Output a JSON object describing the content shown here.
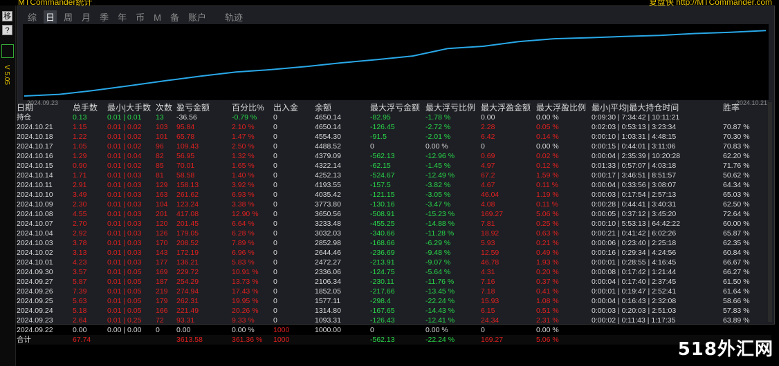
{
  "title": "MTCommander统计",
  "brand": "复盘侠 http://MTCommander.com",
  "sidebar": {
    "btn1": "移",
    "btn2": "?",
    "btn3": "✓",
    "vtext": "V 5.05"
  },
  "tabs": [
    "综",
    "日",
    "周",
    "月",
    "季",
    "年",
    "币",
    "M",
    "备",
    "账户"
  ],
  "active_tab": "日",
  "track_tab": "轨迹",
  "chart": {
    "start_date": "2024.09.23",
    "end_date": "2024.10.21",
    "line_color": "#29a8e8"
  },
  "chart_data": {
    "type": "line",
    "x": [
      "2024.09.23",
      "2024.09.24",
      "2024.09.25",
      "2024.09.26",
      "2024.09.27",
      "2024.09.30",
      "2024.10.01",
      "2024.10.02",
      "2024.10.03",
      "2024.10.04",
      "2024.10.07",
      "2024.10.08",
      "2024.10.09",
      "2024.10.10",
      "2024.10.11",
      "2024.10.14",
      "2024.10.15",
      "2024.10.16",
      "2024.10.17",
      "2024.10.18",
      "2024.10.21"
    ],
    "series": [
      {
        "values": [
          1093.31,
          1314.8,
          1577.11,
          1852.05,
          2106.34,
          2336.06,
          2472.27,
          2644.46,
          2852.98,
          3032.03,
          3233.48,
          3650.56,
          3773.8,
          4035.42,
          4193.55,
          4252.13,
          4322.14,
          4379.09,
          4488.52,
          4554.3,
          4650.14
        ]
      }
    ],
    "ylim": [
      1000,
      4700
    ]
  },
  "columns": [
    "日期",
    "总手数",
    "最小|大手数",
    "次数",
    "盈亏金额",
    "百分比%",
    "出入金",
    "余额",
    "最大浮亏金额",
    "最大浮亏比例",
    "最大浮盈金额",
    "最大浮盈比例",
    "最小|平均|最大持仓时间",
    "胜率"
  ],
  "holding": [
    "持仓",
    "0.13",
    "0.01 | 0.01",
    "13",
    "-36.56",
    "-0.79 %",
    "0",
    "4650.14",
    "-82.95",
    "-1.78 %",
    "0.00",
    "0.00 %",
    "0:09:30 | 7:34:42 | 10:11:21",
    ""
  ],
  "rows": [
    [
      "2024.10.21",
      "1.15",
      "0.01 | 0.02",
      "103",
      "95.84",
      "2.10 %",
      "0",
      "4650.14",
      "-126.45",
      "-2.72 %",
      "2.28",
      "0.05 %",
      "0:02:03 | 0:53:13 | 3:23:34",
      "70.87 %"
    ],
    [
      "2024.10.18",
      "1.22",
      "0.01 | 0.02",
      "101",
      "65.78",
      "1.47 %",
      "0",
      "4554.30",
      "-91.5",
      "-2.01 %",
      "6.42",
      "0.14 %",
      "0:00:10 | 1:03:31 | 4:48:15",
      "70.30 %"
    ],
    [
      "2024.10.17",
      "1.05",
      "0.01 | 0.02",
      "96",
      "109.43",
      "2.50 %",
      "0",
      "4488.52",
      "0",
      "0.00 %",
      "0",
      "0.00 %",
      "0:00:15 | 0:44:01 | 3:11:06",
      "70.83 %"
    ],
    [
      "2024.10.16",
      "1.29",
      "0.01 | 0.04",
      "82",
      "56.95",
      "1.32 %",
      "0",
      "4379.09",
      "-562.13",
      "-12.96 %",
      "0.69",
      "0.02 %",
      "0:00:04 | 2:35:39 | 10:20:28",
      "62.20 %"
    ],
    [
      "2024.10.15",
      "0.90",
      "0.01 | 0.02",
      "85",
      "70.01",
      "1.65 %",
      "0",
      "4322.14",
      "-62.15",
      "-1.45 %",
      "4.97",
      "0.12 %",
      "0:01:33 | 0:57:07 | 4:03:18",
      "71.76 %"
    ],
    [
      "2024.10.14",
      "1.71",
      "0.01 | 0.03",
      "81",
      "58.58",
      "1.40 %",
      "0",
      "4252.13",
      "-524.67",
      "-12.49 %",
      "67.2",
      "1.59 %",
      "0:00:17 | 3:46:51 | 8:51:57",
      "50.62 %"
    ],
    [
      "2024.10.11",
      "2.91",
      "0.01 | 0.03",
      "129",
      "158.13",
      "3.92 %",
      "0",
      "4193.55",
      "-157.5",
      "-3.82 %",
      "4.67",
      "0.11 %",
      "0:00:04 | 0:33:56 | 3:08:07",
      "64.34 %"
    ],
    [
      "2024.10.10",
      "3.49",
      "0.01 | 0.03",
      "163",
      "261.62",
      "6.93 %",
      "0",
      "4035.42",
      "-121.15",
      "-3.05 %",
      "46.04",
      "1.19 %",
      "0:00:03 | 0:17:54 | 2:57:13",
      "65.03 %"
    ],
    [
      "2024.10.09",
      "2.30",
      "0.01 | 0.03",
      "104",
      "123.24",
      "3.38 %",
      "0",
      "3773.80",
      "-130.16",
      "-3.47 %",
      "4.08",
      "0.11 %",
      "0:00:28 | 0:44:41 | 3:40:31",
      "62.50 %"
    ],
    [
      "2024.10.08",
      "4.55",
      "0.01 | 0.03",
      "201",
      "417.08",
      "12.90 %",
      "0",
      "3650.56",
      "-508.91",
      "-15.23 %",
      "169.27",
      "5.06 %",
      "0:00:05 | 0:37:12 | 3:45:20",
      "72.64 %"
    ],
    [
      "2024.10.07",
      "2.70",
      "0.01 | 0.03",
      "120",
      "201.45",
      "6.64 %",
      "0",
      "3233.48",
      "-455.25",
      "-14.88 %",
      "7.81",
      "0.25 %",
      "0:00:10 | 5:53:13 | 64:42:22",
      "60.00 %"
    ],
    [
      "2024.10.04",
      "2.92",
      "0.01 | 0.03",
      "126",
      "179.05",
      "6.28 %",
      "0",
      "3032.03",
      "-340.66",
      "-11.28 %",
      "18.92",
      "0.63 %",
      "0:00:21 | 0:41:42 | 6:02:26",
      "65.87 %"
    ],
    [
      "2024.10.03",
      "3.78",
      "0.01 | 0.03",
      "170",
      "208.52",
      "7.89 %",
      "0",
      "2852.98",
      "-168.66",
      "-6.29 %",
      "5.93",
      "0.21 %",
      "0:00:06 | 0:23:40 | 2:25:18",
      "62.35 %"
    ],
    [
      "2024.10.02",
      "3.13",
      "0.01 | 0.03",
      "143",
      "172.19",
      "6.96 %",
      "0",
      "2644.46",
      "-236.69",
      "-9.48 %",
      "12.59",
      "0.49 %",
      "0:00:16 | 0:29:34 | 4:24:56",
      "60.84 %"
    ],
    [
      "2024.10.01",
      "4.23",
      "0.01 | 0.03",
      "177",
      "136.21",
      "5.83 %",
      "0",
      "2472.27",
      "-213.91",
      "-9.07 %",
      "46.78",
      "1.93 %",
      "0:00:01 | 0:28:55 | 4:16:45",
      "66.67 %"
    ],
    [
      "2024.09.30",
      "3.57",
      "0.01 | 0.05",
      "169",
      "229.72",
      "10.91 %",
      "0",
      "2336.06",
      "-124.75",
      "-5.64 %",
      "4.31",
      "0.20 %",
      "0:00:08 | 0:17:42 | 1:21:44",
      "66.27 %"
    ],
    [
      "2024.09.27",
      "5.87",
      "0.01 | 0.05",
      "187",
      "254.29",
      "13.73 %",
      "0",
      "2106.34",
      "-230.11",
      "-11.76 %",
      "7.16",
      "0.37 %",
      "0:00:04 | 0:17:40 | 2:37:45",
      "61.50 %"
    ],
    [
      "2024.09.26",
      "7.39",
      "0.01 | 0.05",
      "219",
      "274.94",
      "17.43 %",
      "0",
      "1852.05",
      "-217.66",
      "-13.45 %",
      "7.18",
      "0.41 %",
      "0:00:01 | 0:19:47 | 2:52:41",
      "61.64 %"
    ],
    [
      "2024.09.25",
      "5.63",
      "0.01 | 0.05",
      "179",
      "262.31",
      "19.95 %",
      "0",
      "1577.11",
      "-298.4",
      "-22.24 %",
      "15.93",
      "1.08 %",
      "0:00:04 | 0:16:43 | 2:32:08",
      "58.66 %"
    ],
    [
      "2024.09.24",
      "5.18",
      "0.01 | 0.05",
      "166",
      "221.49",
      "20.26 %",
      "0",
      "1314.80",
      "-167.65",
      "-14.43 %",
      "6.15",
      "0.51 %",
      "0:00:03 | 0:20:03 | 2:51:03",
      "57.83 %"
    ],
    [
      "2024.09.23",
      "2.64",
      "0.01 | 0.25",
      "72",
      "93.31",
      "9.33 %",
      "0",
      "1093.31",
      "-126.43",
      "-12.41 %",
      "24.34",
      "2.31 %",
      "0:00:02 | 0:11:43 | 1:17:35",
      "63.89 %"
    ],
    [
      "2024.09.22",
      "0.00",
      "0.00 | 0.00",
      "0",
      "0.00",
      "0.00 %",
      "1000",
      "1000.00",
      "0",
      "0.00 %",
      "0",
      "0.00 %",
      "",
      ""
    ]
  ],
  "total": [
    "合计",
    "67.74",
    "",
    "",
    "3613.58",
    "361.36 %",
    "1000",
    "",
    "-562.13",
    "-22.24 %",
    "169.27",
    "5.06 %",
    "",
    ""
  ],
  "watermark": "518外汇网"
}
